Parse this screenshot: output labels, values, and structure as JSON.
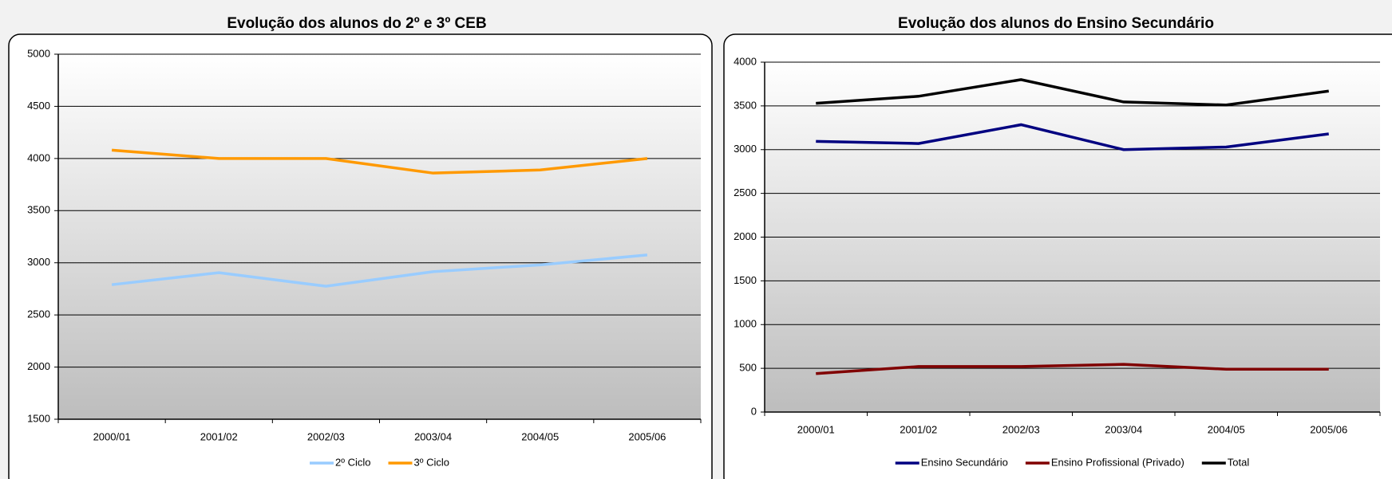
{
  "chart_data": [
    {
      "type": "line",
      "title": "Evolução dos alunos do 2º e 3º CEB",
      "categories": [
        "2000/01",
        "2001/02",
        "2002/03",
        "2003/04",
        "2004/05",
        "2005/06"
      ],
      "series": [
        {
          "name": "2º Ciclo",
          "color": "#99ccff",
          "values": [
            2790,
            2905,
            2775,
            2915,
            2980,
            3075
          ]
        },
        {
          "name": "3º Ciclo",
          "color": "#ff9900",
          "values": [
            4080,
            4000,
            4000,
            3860,
            3890,
            4000
          ]
        }
      ],
      "ylim": [
        1500,
        5000
      ],
      "yticks": [
        1500,
        2000,
        2500,
        3000,
        3500,
        4000,
        4500,
        5000
      ],
      "grid": true
    },
    {
      "type": "line",
      "title": "Evolução dos alunos do Ensino Secundário",
      "categories": [
        "2000/01",
        "2001/02",
        "2002/03",
        "2003/04",
        "2004/05",
        "2005/06"
      ],
      "series": [
        {
          "name": "Ensino Secundário",
          "color": "#000080",
          "values": [
            3095,
            3070,
            3285,
            3000,
            3030,
            3180
          ]
        },
        {
          "name": "Ensino Profissional (Privado)",
          "color": "#800000",
          "values": [
            440,
            520,
            520,
            545,
            490,
            490
          ]
        },
        {
          "name": "Total",
          "color": "#000000",
          "values": [
            3530,
            3610,
            3800,
            3545,
            3510,
            3670
          ]
        }
      ],
      "ylim": [
        0,
        4000
      ],
      "yticks": [
        0,
        500,
        1000,
        1500,
        2000,
        2500,
        3000,
        3500,
        4000
      ],
      "grid": true
    }
  ]
}
